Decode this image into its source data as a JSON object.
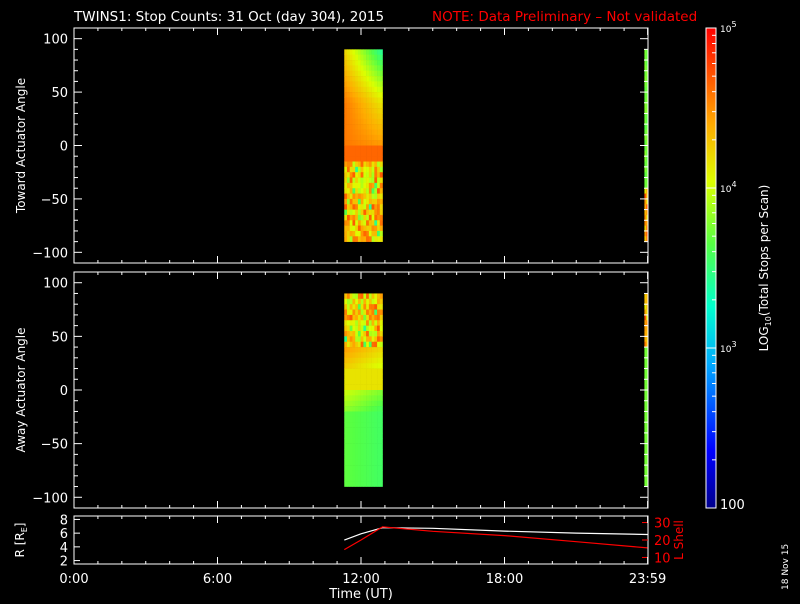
{
  "title": "TWINS1: Stop Counts: 31 Oct (day 304), 2015",
  "note": "NOTE: Data Preliminary – Not validated",
  "footer_date": "18 Nov 15",
  "colors": {
    "background": "#000000",
    "axes": "#ffffff",
    "note": "#ff0000",
    "lshell": "#ff0000",
    "radius": "#ffffff"
  },
  "chart_data": [
    {
      "id": "toward",
      "type": "heatmap",
      "ylabel": "Toward Actuator Angle",
      "ylim": [
        -110,
        110
      ],
      "yticks": [
        100,
        50,
        0,
        -50,
        -100
      ],
      "xlim": [
        0,
        24
      ],
      "blocks": [
        {
          "x_start": 11.3,
          "x_end": 12.9,
          "y_start": -90,
          "y_end": 90,
          "pattern": "toward-main"
        },
        {
          "x_start": 23.85,
          "x_end": 24.0,
          "y_start": -90,
          "y_end": 90,
          "pattern": "toward-edge"
        }
      ]
    },
    {
      "id": "away",
      "type": "heatmap",
      "ylabel": "Away Actuator Angle",
      "ylim": [
        -110,
        110
      ],
      "yticks": [
        100,
        50,
        0,
        -50,
        -100
      ],
      "xlim": [
        0,
        24
      ],
      "blocks": [
        {
          "x_start": 11.3,
          "x_end": 12.9,
          "y_start": -90,
          "y_end": 90,
          "pattern": "away-main"
        },
        {
          "x_start": 23.85,
          "x_end": 24.0,
          "y_start": -90,
          "y_end": 90,
          "pattern": "away-edge"
        }
      ]
    },
    {
      "id": "orbit",
      "type": "line",
      "ylabel": "R [RE]",
      "ylabel_main": "R [R",
      "ylabel_sub": "E",
      "ylabel_close": "]",
      "ylim": [
        1.5,
        8.5
      ],
      "yticks": [
        2,
        4,
        6,
        8
      ],
      "y2label": "L Shell",
      "y2lim": [
        6.25,
        33.75
      ],
      "y2ticks": [
        10,
        20,
        30
      ],
      "xlabel": "Time (UT)",
      "xlim": [
        0,
        24
      ],
      "xticks": [
        0,
        6,
        12,
        18,
        23.983
      ],
      "xtick_labels": [
        "0:00",
        "6:00",
        "12:00",
        "18:00",
        "23:59"
      ],
      "series": [
        {
          "axis": "left",
          "x": [
            11.3,
            12.0,
            12.9,
            15.0,
            18.0,
            21.0,
            23.983
          ],
          "y": [
            5.0,
            5.9,
            6.8,
            6.7,
            6.3,
            6.0,
            5.8
          ]
        },
        {
          "axis": "right",
          "x": [
            11.3,
            12.0,
            12.9,
            15.0,
            18.0,
            21.0,
            23.983
          ],
          "y": [
            14.5,
            20.0,
            27.5,
            25.0,
            22.5,
            19.0,
            15.5
          ]
        }
      ]
    }
  ],
  "colorbar": {
    "label_prefix": "LOG",
    "label_sub": "10",
    "label_suffix": "(Total Stops per Scan)",
    "min_label": "100",
    "ticks": [
      {
        "base": "10",
        "exp": "3",
        "value": 1000
      },
      {
        "base": "10",
        "exp": "4",
        "value": 10000
      },
      {
        "base": "10",
        "exp": "5",
        "value": 100000
      }
    ],
    "range": [
      100,
      100000
    ]
  }
}
